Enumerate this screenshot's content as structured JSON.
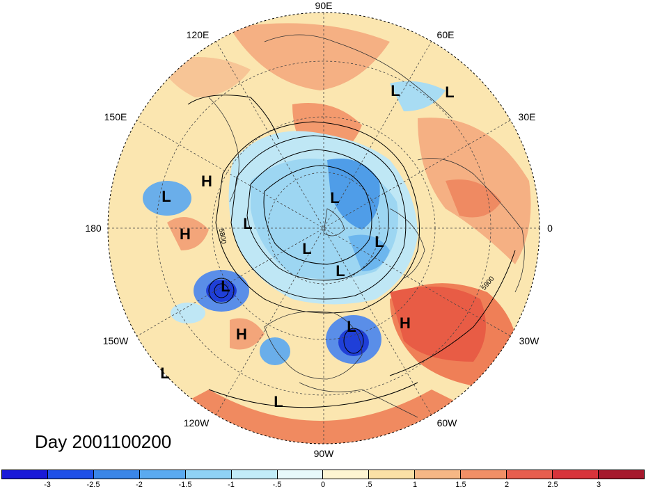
{
  "map": {
    "projection": "north-polar-stereographic",
    "longitude_labels": [
      "90E",
      "60E",
      "30E",
      "0",
      "30W",
      "60W",
      "90W",
      "120W",
      "150W",
      "180",
      "150E",
      "120E"
    ],
    "contour_labels": [
      "5800",
      "5900"
    ],
    "pressure_systems": [
      {
        "type": "L",
        "name": "low-arctic-1"
      },
      {
        "type": "L",
        "name": "low-arctic-2"
      },
      {
        "type": "H",
        "name": "high-pacific-1"
      },
      {
        "type": "L",
        "name": "low-pacific-1"
      },
      {
        "type": "H",
        "name": "high-pacific-2"
      },
      {
        "type": "L",
        "name": "low-polar-1"
      },
      {
        "type": "L",
        "name": "low-polar-2"
      },
      {
        "type": "L",
        "name": "low-polar-3"
      },
      {
        "type": "L",
        "name": "low-polar-4"
      },
      {
        "type": "L",
        "name": "low-polar-5"
      },
      {
        "type": "L",
        "name": "low-gulf-alaska"
      },
      {
        "type": "H",
        "name": "high-east-pacific"
      },
      {
        "type": "L",
        "name": "low-east-north-america"
      },
      {
        "type": "H",
        "name": "high-atlantic"
      },
      {
        "type": "L",
        "name": "low-subtropic-west"
      },
      {
        "type": "L",
        "name": "low-subtropic-central"
      }
    ],
    "day_prefix": "Day",
    "day_value": "2001100200"
  },
  "colorbar": {
    "ticks": [
      "-3",
      "-2.5",
      "-2",
      "-1.5",
      "-1",
      "-.5",
      "0",
      ".5",
      "1",
      "1.5",
      "2",
      "2.5",
      "3"
    ],
    "colors": [
      "#1a1ad8",
      "#1f50e8",
      "#3a86e8",
      "#5aaaf0",
      "#8fd2f5",
      "#c2ecf8",
      "#e8f9fb",
      "#fdf5d2",
      "#fbe0a6",
      "#f6b785",
      "#f18f66",
      "#e85e4e",
      "#d8343b",
      "#a6192d"
    ]
  }
}
